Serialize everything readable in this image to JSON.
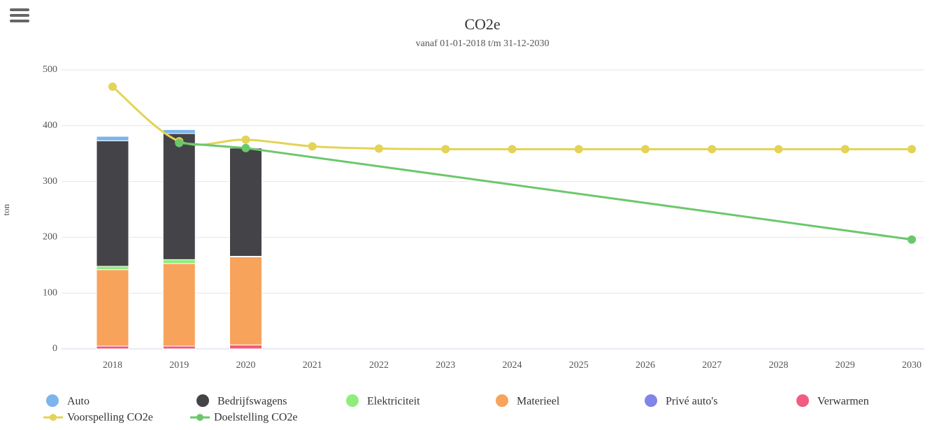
{
  "chart_data": {
    "type": "stacked-bar-line",
    "title": "CO2e",
    "subtitle": "vanaf 01-01-2018 t/m 31-12-2030",
    "y_label": "ton",
    "categories": [
      "2018",
      "2019",
      "2020",
      "2021",
      "2022",
      "2023",
      "2024",
      "2025",
      "2026",
      "2027",
      "2028",
      "2029",
      "2030"
    ],
    "ylim": [
      0,
      500
    ],
    "yticks": [
      0,
      100,
      200,
      300,
      400,
      500
    ],
    "grid": true,
    "legend": "bottom",
    "series": [
      {
        "name": "Auto",
        "type": "bar",
        "color": "#7cb5ec",
        "values": [
          8,
          7,
          0,
          null,
          null,
          null,
          null,
          null,
          null,
          null,
          null,
          null,
          null
        ]
      },
      {
        "name": "Bedrijfswagens",
        "type": "bar",
        "color": "#434348",
        "values": [
          225,
          226,
          194,
          null,
          null,
          null,
          null,
          null,
          null,
          null,
          null,
          null,
          null
        ]
      },
      {
        "name": "Elektriciteit",
        "type": "bar",
        "color": "#90ed7d",
        "values": [
          6,
          7,
          1,
          null,
          null,
          null,
          null,
          null,
          null,
          null,
          null,
          null,
          null
        ]
      },
      {
        "name": "Materieel",
        "type": "bar",
        "color": "#f7a35c",
        "values": [
          137,
          148,
          158,
          null,
          null,
          null,
          null,
          null,
          null,
          null,
          null,
          null,
          null
        ]
      },
      {
        "name": "Privé auto's",
        "type": "bar",
        "color": "#8085e9",
        "values": [
          0,
          0,
          0,
          null,
          null,
          null,
          null,
          null,
          null,
          null,
          null,
          null,
          null
        ]
      },
      {
        "name": "Verwarmen",
        "type": "bar",
        "color": "#f15c80",
        "values": [
          5,
          5,
          7,
          null,
          null,
          null,
          null,
          null,
          null,
          null,
          null,
          null,
          null
        ]
      },
      {
        "name": "Voorspelling CO2e",
        "type": "spline",
        "color": "#e4d354",
        "values": [
          470,
          372,
          375,
          363,
          359,
          358,
          358,
          358,
          358,
          358,
          358,
          358,
          358
        ]
      },
      {
        "name": "Doelstelling CO2e",
        "type": "line",
        "color": "#6cc76c",
        "x": [
          "2019",
          "2020",
          "2030"
        ],
        "values": [
          369,
          360,
          196
        ]
      }
    ]
  }
}
